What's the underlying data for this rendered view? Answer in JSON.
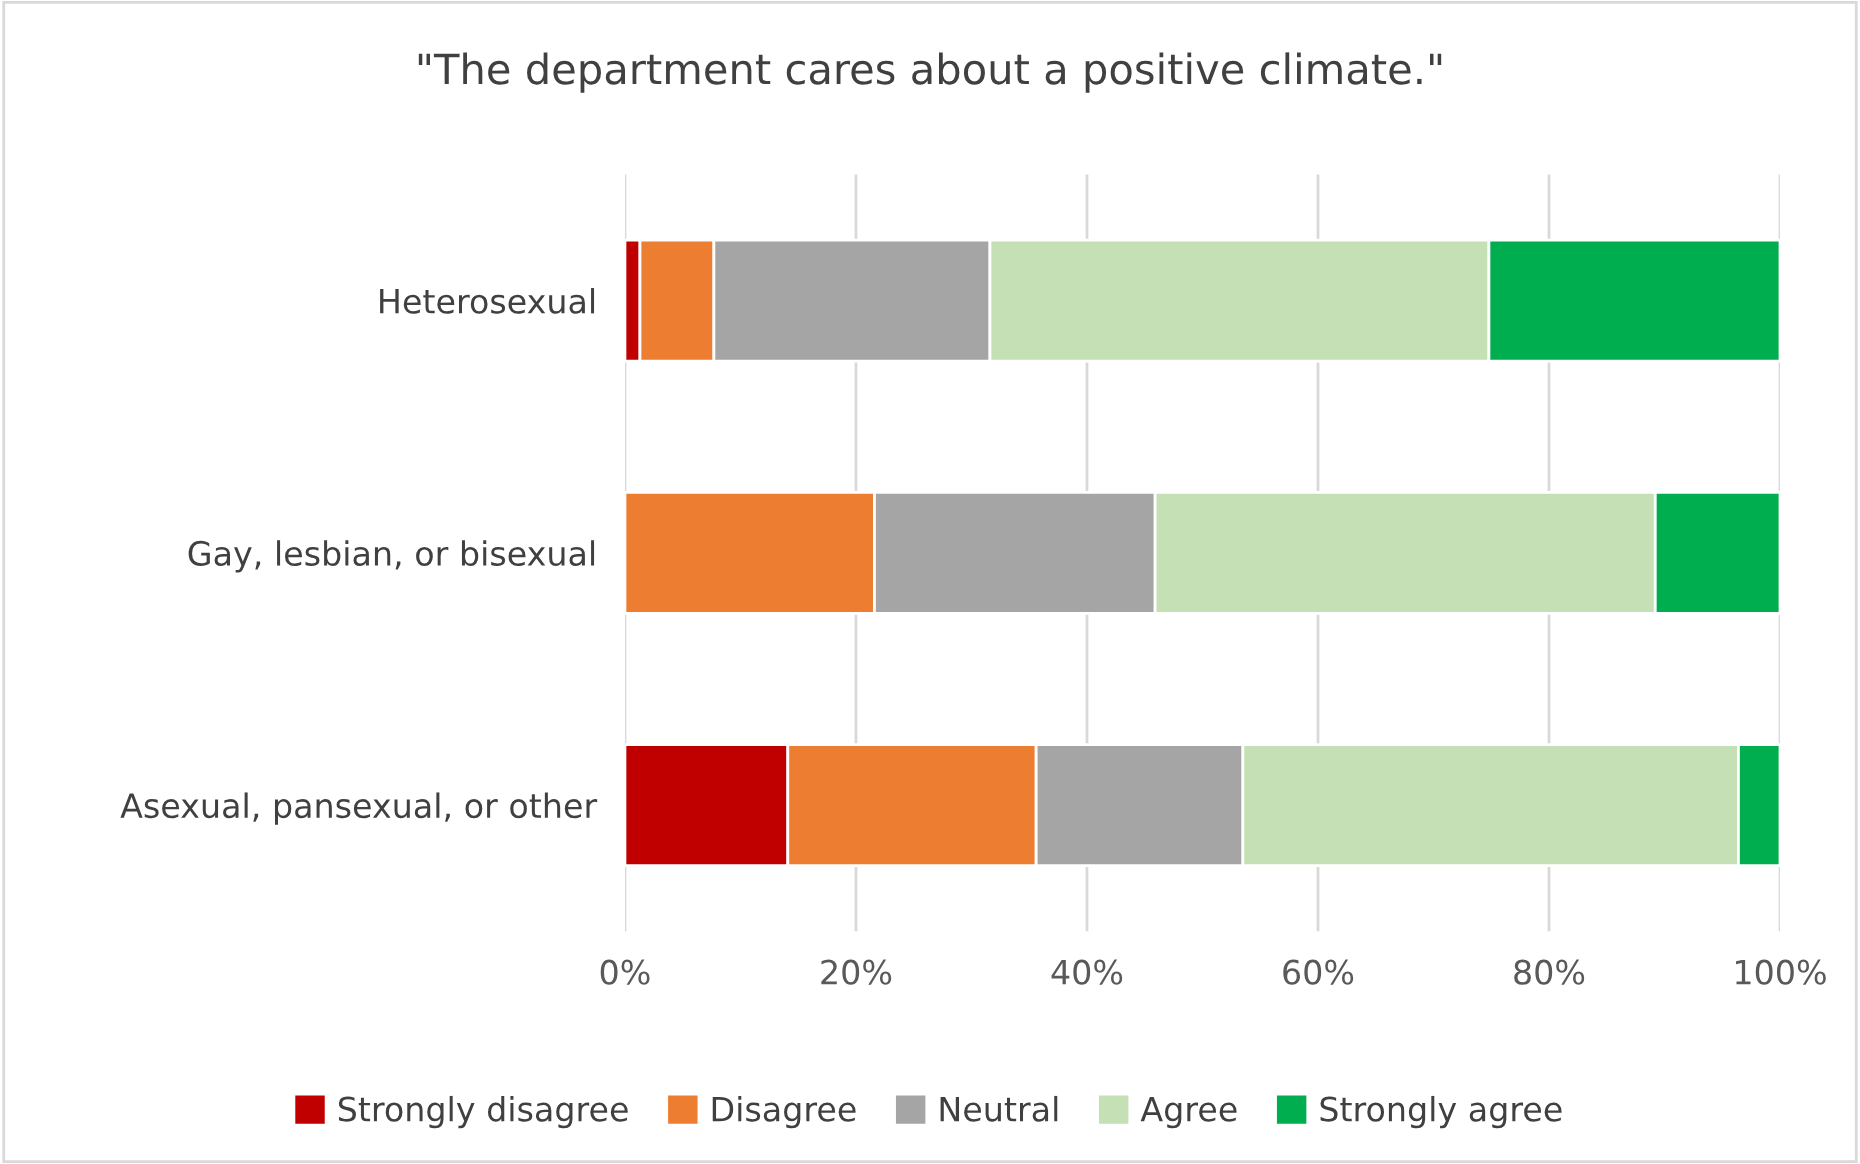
{
  "chart_data": {
    "type": "bar",
    "orientation": "horizontal",
    "stacked": true,
    "title": "\"The department cares about a positive climate.\"",
    "categories": [
      "Heterosexual",
      "Gay, lesbian, or bisexual",
      "Asexual, pansexual, or other"
    ],
    "series": [
      {
        "name": "Strongly disagree",
        "color": "#c00000",
        "values": [
          1.3,
          0,
          14.1
        ]
      },
      {
        "name": "Disagree",
        "color": "#ed7d31",
        "values": [
          6.4,
          21.6,
          21.5
        ]
      },
      {
        "name": "Neutral",
        "color": "#a5a5a5",
        "values": [
          23.9,
          24.3,
          17.9
        ]
      },
      {
        "name": "Agree",
        "color": "#c5e0b4",
        "values": [
          43.2,
          43.3,
          42.9
        ]
      },
      {
        "name": "Strongly agree",
        "color": "#00ad4f",
        "values": [
          25.2,
          10.8,
          3.6
        ]
      }
    ],
    "xlim": [
      0,
      100
    ],
    "xticks": [
      {
        "value": 0,
        "label": "0%"
      },
      {
        "value": 20,
        "label": "20%"
      },
      {
        "value": 40,
        "label": "40%"
      },
      {
        "value": 60,
        "label": "60%"
      },
      {
        "value": 80,
        "label": "80%"
      },
      {
        "value": 100,
        "label": "100%"
      }
    ],
    "grid": "x",
    "legend": "bottom"
  }
}
